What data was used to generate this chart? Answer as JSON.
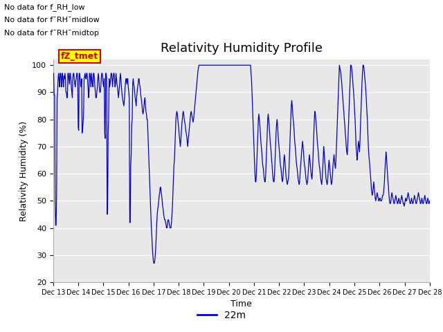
{
  "title": "Relativity Humidity Profile",
  "xlabel": "Time",
  "ylabel": "Relativity Humidity (%)",
  "ylim": [
    20,
    102
  ],
  "yticks": [
    20,
    30,
    40,
    50,
    60,
    70,
    80,
    90,
    100
  ],
  "line_color": "#0000cc",
  "line_label": "22m",
  "background_color": "#e8e8e8",
  "no_data_texts": [
    "No data for f_RH_low",
    "No data for f¯RH¯midlow",
    "No data for f¯RH¯midtop"
  ],
  "fz_tmet_label": "fZ_tmet",
  "x_tick_labels": [
    "Dec 13",
    "Dec 14",
    "Dec 15",
    "Dec 16",
    "Dec 17",
    "Dec 18",
    "Dec 19",
    "Dec 20",
    "Dec 21",
    "Dec 22",
    "Dec 23",
    "Dec 24",
    "Dec 25",
    "Dec 26",
    "Dec 27",
    "Dec 28"
  ],
  "title_fontsize": 13,
  "axis_label_fontsize": 9,
  "tick_fontsize": 8,
  "figsize": [
    6.4,
    4.8
  ],
  "dpi": 100
}
